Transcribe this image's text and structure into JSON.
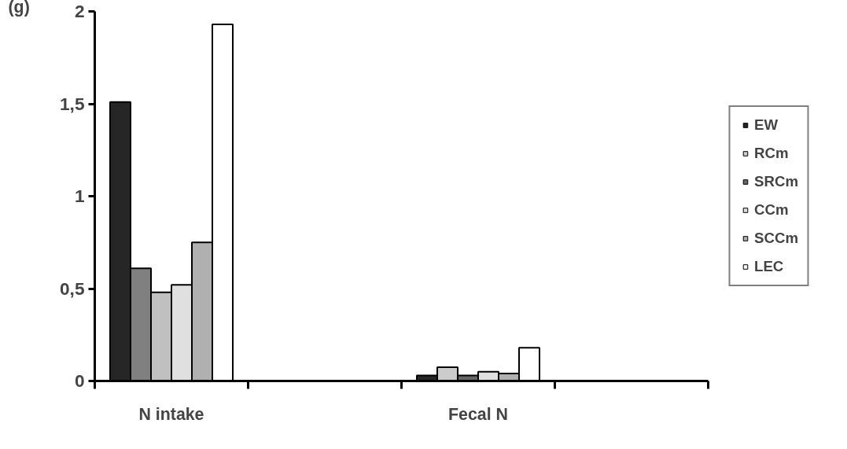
{
  "chart_data": {
    "type": "bar",
    "ylabel": "(g)",
    "categories": [
      "N intake",
      null,
      "Fecal N",
      null
    ],
    "series": [
      {
        "name": "EW",
        "color": "#262626",
        "colors": [
          "#262626",
          null,
          "#262626",
          null
        ],
        "values": [
          1.51,
          null,
          0.03,
          null
        ]
      },
      {
        "name": "RCm",
        "color": "#cccccc",
        "colors": [
          "#808080",
          null,
          "#cccccc",
          null
        ],
        "values": [
          0.61,
          null,
          0.075,
          null
        ]
      },
      {
        "name": "SRCm",
        "color": "#666666",
        "colors": [
          "#c0c0c0",
          null,
          "#666666",
          null
        ],
        "values": [
          0.48,
          null,
          0.03,
          null
        ]
      },
      {
        "name": "CCm",
        "color": "#e0e0e0",
        "colors": [
          "#e0e0e0",
          null,
          "#e0e0e0",
          null
        ],
        "values": [
          0.52,
          null,
          0.05,
          null
        ]
      },
      {
        "name": "SCCm",
        "color": "#b0b0b0",
        "colors": [
          "#b0b0b0",
          null,
          "#b0b0b0",
          null
        ],
        "values": [
          0.75,
          null,
          0.04,
          null
        ]
      },
      {
        "name": "LEC",
        "color": "#ffffff",
        "colors": [
          "#ffffff",
          null,
          "#ffffff",
          null
        ],
        "values": [
          1.93,
          null,
          0.18,
          null
        ]
      }
    ],
    "ylim": [
      0,
      2
    ],
    "yticks": [
      0,
      {
        "value": 0.5,
        "label": "0,5"
      },
      1,
      {
        "value": 1.5,
        "label": "1,5"
      },
      2
    ],
    "grid": false,
    "legend": "right"
  }
}
